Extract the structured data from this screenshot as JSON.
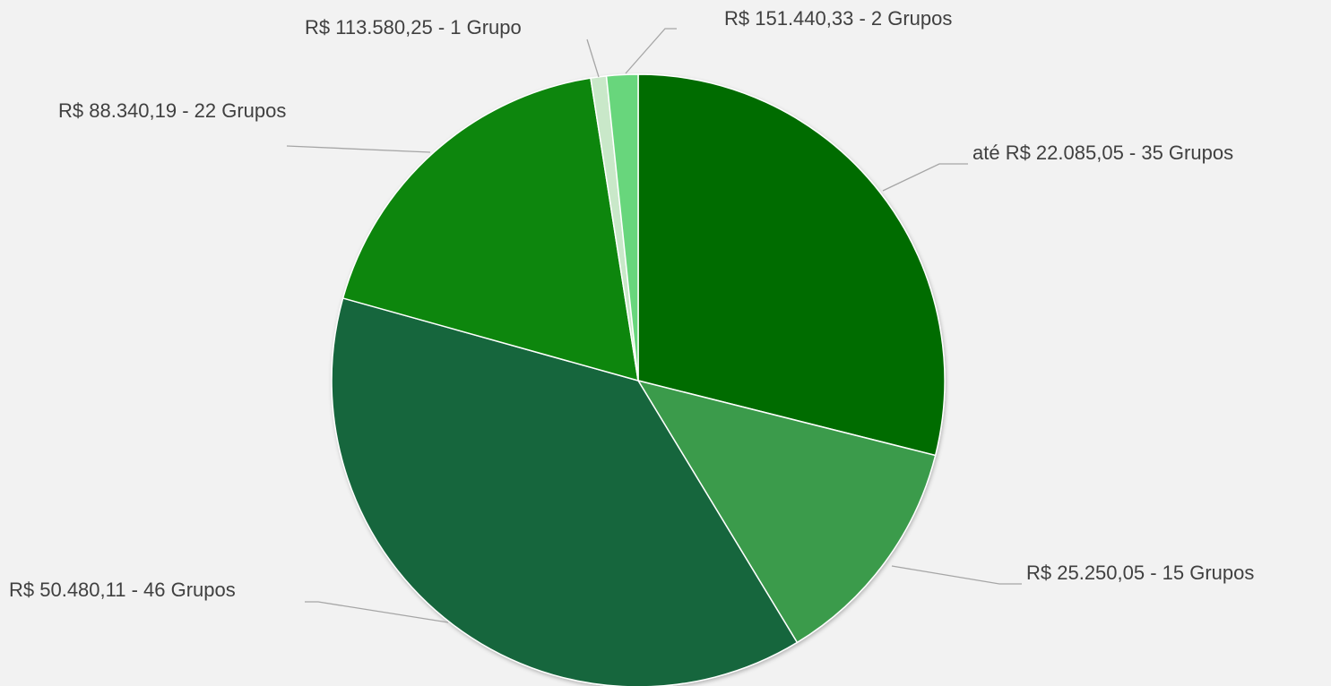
{
  "chart_data": {
    "type": "pie",
    "categories": [
      "até R$ 22.085,05 - 35 Grupos",
      "R$ 25.250,05 - 15 Grupos",
      "R$ 50.480,11 - 46 Grupos",
      "R$ 88.340,19 - 22 Grupos",
      "R$ 113.580,25 - 1 Grupo",
      "R$ 151.440,33 - 2 Grupos"
    ],
    "values": [
      35,
      15,
      46,
      22,
      1,
      2
    ],
    "colors": [
      "#066c06",
      "#3a9b4c",
      "#16663d",
      "#088608",
      "#c9e8c9",
      "#67d67b"
    ]
  }
}
